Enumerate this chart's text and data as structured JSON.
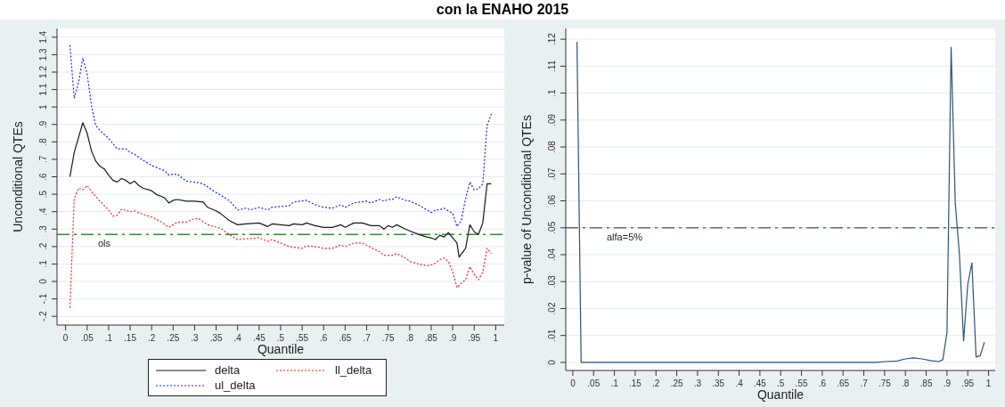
{
  "chart_data": [
    {
      "type": "line",
      "title": "con la ENAHO 2015",
      "xlabel": "Quantile",
      "ylabel": "Unconditional QTEs",
      "xlim": [
        -0.02,
        1.02
      ],
      "ylim": [
        -0.25,
        1.45
      ],
      "xticks": [
        {
          "value": 0,
          "label": "0"
        },
        {
          "value": 0.05,
          "label": ".05"
        },
        {
          "value": 0.1,
          "label": ".1"
        },
        {
          "value": 0.15,
          "label": ".15"
        },
        {
          "value": 0.2,
          "label": ".2"
        },
        {
          "value": 0.25,
          "label": ".25"
        },
        {
          "value": 0.3,
          "label": ".3"
        },
        {
          "value": 0.35,
          "label": ".35"
        },
        {
          "value": 0.4,
          "label": ".4"
        },
        {
          "value": 0.45,
          "label": ".45"
        },
        {
          "value": 0.5,
          "label": ".5"
        },
        {
          "value": 0.55,
          "label": ".55"
        },
        {
          "value": 0.6,
          "label": ".6"
        },
        {
          "value": 0.65,
          "label": ".65"
        },
        {
          "value": 0.7,
          "label": ".7"
        },
        {
          "value": 0.75,
          "label": ".75"
        },
        {
          "value": 0.8,
          "label": ".8"
        },
        {
          "value": 0.85,
          "label": ".85"
        },
        {
          "value": 0.9,
          "label": ".9"
        },
        {
          "value": 0.95,
          "label": ".95"
        },
        {
          "value": 1,
          "label": "1"
        }
      ],
      "yticks": [
        {
          "value": -0.2,
          "label": "-.2"
        },
        {
          "value": -0.1,
          "label": "-.1"
        },
        {
          "value": 0,
          "label": "0"
        },
        {
          "value": 0.1,
          "label": ".1"
        },
        {
          "value": 0.2,
          "label": ".2"
        },
        {
          "value": 0.3,
          "label": ".3"
        },
        {
          "value": 0.4,
          "label": ".4"
        },
        {
          "value": 0.5,
          "label": ".5"
        },
        {
          "value": 0.6,
          "label": ".6"
        },
        {
          "value": 0.7,
          "label": ".7"
        },
        {
          "value": 0.8,
          "label": ".8"
        },
        {
          "value": 0.9,
          "label": ".9"
        },
        {
          "value": 1,
          "label": "1"
        },
        {
          "value": 1.1,
          "label": "1.1"
        },
        {
          "value": 1.2,
          "label": "1.2"
        },
        {
          "value": 1.3,
          "label": "1.3"
        },
        {
          "value": 1.4,
          "label": "1.4"
        }
      ],
      "grid": "y",
      "legend": "bottom",
      "marker": "none",
      "ref_lines": [
        {
          "axis": "y",
          "value": 0.27,
          "label": "ols",
          "color": "#3a8a3a",
          "line_style": "dashed"
        }
      ],
      "series": [
        {
          "name": "delta",
          "color": "#1a1a1a",
          "line_style": "solid",
          "x": [
            0.01,
            0.02,
            0.04,
            0.05,
            0.06,
            0.07,
            0.08,
            0.09,
            0.1,
            0.11,
            0.12,
            0.13,
            0.14,
            0.15,
            0.16,
            0.17,
            0.18,
            0.2,
            0.21,
            0.23,
            0.24,
            0.25,
            0.26,
            0.28,
            0.3,
            0.32,
            0.33,
            0.35,
            0.36,
            0.38,
            0.4,
            0.42,
            0.45,
            0.47,
            0.48,
            0.5,
            0.52,
            0.53,
            0.55,
            0.56,
            0.58,
            0.6,
            0.62,
            0.64,
            0.65,
            0.67,
            0.69,
            0.71,
            0.73,
            0.74,
            0.75,
            0.76,
            0.77,
            0.79,
            0.8,
            0.82,
            0.84,
            0.85,
            0.86,
            0.87,
            0.88,
            0.89,
            0.9,
            0.91,
            0.915,
            0.93,
            0.94,
            0.95,
            0.96,
            0.97,
            0.98,
            0.99
          ],
          "values": [
            0.6,
            0.74,
            0.91,
            0.85,
            0.75,
            0.69,
            0.66,
            0.645,
            0.61,
            0.58,
            0.57,
            0.59,
            0.58,
            0.56,
            0.575,
            0.55,
            0.535,
            0.52,
            0.5,
            0.48,
            0.45,
            0.465,
            0.47,
            0.46,
            0.46,
            0.455,
            0.425,
            0.405,
            0.39,
            0.35,
            0.325,
            0.33,
            0.335,
            0.315,
            0.33,
            0.325,
            0.32,
            0.33,
            0.325,
            0.335,
            0.32,
            0.31,
            0.31,
            0.325,
            0.31,
            0.335,
            0.335,
            0.32,
            0.32,
            0.3,
            0.32,
            0.31,
            0.325,
            0.3,
            0.29,
            0.27,
            0.255,
            0.25,
            0.24,
            0.265,
            0.255,
            0.28,
            0.25,
            0.22,
            0.14,
            0.19,
            0.325,
            0.285,
            0.27,
            0.335,
            0.56,
            0.56
          ]
        },
        {
          "name": "ll_delta",
          "color": "#ff2020",
          "line_style": "dotted",
          "x": [
            0.01,
            0.02,
            0.03,
            0.04,
            0.05,
            0.06,
            0.08,
            0.1,
            0.11,
            0.12,
            0.13,
            0.15,
            0.16,
            0.18,
            0.2,
            0.22,
            0.24,
            0.25,
            0.26,
            0.28,
            0.3,
            0.31,
            0.33,
            0.36,
            0.38,
            0.4,
            0.42,
            0.45,
            0.47,
            0.48,
            0.5,
            0.52,
            0.55,
            0.56,
            0.58,
            0.6,
            0.62,
            0.64,
            0.65,
            0.67,
            0.69,
            0.71,
            0.73,
            0.74,
            0.76,
            0.77,
            0.79,
            0.8,
            0.82,
            0.84,
            0.85,
            0.86,
            0.87,
            0.88,
            0.89,
            0.9,
            0.91,
            0.92,
            0.93,
            0.94,
            0.95,
            0.96,
            0.97,
            0.98,
            0.99
          ],
          "values": [
            -0.15,
            0.475,
            0.535,
            0.525,
            0.55,
            0.515,
            0.46,
            0.41,
            0.375,
            0.38,
            0.415,
            0.4,
            0.405,
            0.385,
            0.37,
            0.345,
            0.31,
            0.325,
            0.34,
            0.34,
            0.36,
            0.36,
            0.325,
            0.305,
            0.27,
            0.24,
            0.245,
            0.25,
            0.23,
            0.24,
            0.22,
            0.2,
            0.19,
            0.205,
            0.2,
            0.19,
            0.19,
            0.21,
            0.2,
            0.22,
            0.22,
            0.195,
            0.17,
            0.15,
            0.15,
            0.16,
            0.135,
            0.115,
            0.1,
            0.09,
            0.095,
            0.105,
            0.125,
            0.135,
            0.115,
            0.055,
            -0.035,
            -0.01,
            0.01,
            0.085,
            0.04,
            0.01,
            0.055,
            0.19,
            0.16
          ]
        },
        {
          "name": "ul_delta",
          "color": "#2020ff",
          "line_style": "dotted",
          "x": [
            0.01,
            0.02,
            0.03,
            0.04,
            0.05,
            0.06,
            0.07,
            0.08,
            0.1,
            0.12,
            0.14,
            0.15,
            0.16,
            0.18,
            0.2,
            0.22,
            0.23,
            0.24,
            0.25,
            0.26,
            0.28,
            0.3,
            0.32,
            0.34,
            0.36,
            0.38,
            0.4,
            0.42,
            0.43,
            0.45,
            0.47,
            0.48,
            0.5,
            0.52,
            0.53,
            0.56,
            0.58,
            0.6,
            0.62,
            0.64,
            0.65,
            0.67,
            0.7,
            0.71,
            0.73,
            0.74,
            0.75,
            0.76,
            0.77,
            0.79,
            0.8,
            0.82,
            0.84,
            0.85,
            0.86,
            0.87,
            0.88,
            0.9,
            0.91,
            0.92,
            0.93,
            0.94,
            0.95,
            0.96,
            0.97,
            0.98,
            0.99
          ],
          "values": [
            1.355,
            1.05,
            1.14,
            1.28,
            1.19,
            1.01,
            0.895,
            0.865,
            0.82,
            0.76,
            0.76,
            0.74,
            0.73,
            0.695,
            0.665,
            0.645,
            0.635,
            0.61,
            0.615,
            0.615,
            0.575,
            0.57,
            0.56,
            0.525,
            0.495,
            0.465,
            0.41,
            0.42,
            0.41,
            0.425,
            0.41,
            0.425,
            0.43,
            0.435,
            0.455,
            0.465,
            0.44,
            0.425,
            0.42,
            0.44,
            0.425,
            0.45,
            0.46,
            0.45,
            0.47,
            0.46,
            0.47,
            0.47,
            0.485,
            0.465,
            0.46,
            0.44,
            0.41,
            0.395,
            0.41,
            0.41,
            0.42,
            0.39,
            0.315,
            0.35,
            0.475,
            0.57,
            0.525,
            0.53,
            0.56,
            0.895,
            0.96
          ]
        }
      ]
    },
    {
      "type": "line",
      "xlabel": "Quantile",
      "ylabel": "p-value of Unconditional QTEs",
      "xlim": [
        -0.017,
        1.016
      ],
      "ylim": [
        -0.003,
        0.124
      ],
      "xticks": [
        {
          "value": 0,
          "label": "0"
        },
        {
          "value": 0.05,
          "label": ".05"
        },
        {
          "value": 0.1,
          "label": ".1"
        },
        {
          "value": 0.15,
          "label": ".15"
        },
        {
          "value": 0.2,
          "label": ".2"
        },
        {
          "value": 0.25,
          "label": ".25"
        },
        {
          "value": 0.3,
          "label": ".3"
        },
        {
          "value": 0.35,
          "label": ".35"
        },
        {
          "value": 0.4,
          "label": ".4"
        },
        {
          "value": 0.45,
          "label": ".45"
        },
        {
          "value": 0.5,
          "label": ".5"
        },
        {
          "value": 0.55,
          "label": ".55"
        },
        {
          "value": 0.6,
          "label": ".6"
        },
        {
          "value": 0.65,
          "label": ".65"
        },
        {
          "value": 0.7,
          "label": ".7"
        },
        {
          "value": 0.75,
          "label": ".75"
        },
        {
          "value": 0.8,
          "label": ".8"
        },
        {
          "value": 0.85,
          "label": ".85"
        },
        {
          "value": 0.9,
          "label": ".9"
        },
        {
          "value": 0.95,
          "label": ".95"
        },
        {
          "value": 1,
          "label": "1"
        }
      ],
      "yticks": [
        {
          "value": 0,
          "label": "0"
        },
        {
          "value": 0.01,
          "label": ".01"
        },
        {
          "value": 0.02,
          "label": ".02"
        },
        {
          "value": 0.03,
          "label": ".03"
        },
        {
          "value": 0.04,
          "label": ".04"
        },
        {
          "value": 0.05,
          "label": ".05"
        },
        {
          "value": 0.06,
          "label": ".06"
        },
        {
          "value": 0.07,
          "label": ".07"
        },
        {
          "value": 0.08,
          "label": ".08"
        },
        {
          "value": 0.09,
          "label": ".09"
        },
        {
          "value": 0.1,
          "label": ".1"
        },
        {
          "value": 0.11,
          "label": ".11"
        },
        {
          "value": 0.12,
          "label": ".12"
        }
      ],
      "grid": "y",
      "marker": "none",
      "ref_lines": [
        {
          "axis": "y",
          "value": 0.05,
          "label": "alfa=5%",
          "color": "#3a8a3a",
          "line_style": "dashed"
        }
      ],
      "series": [
        {
          "color": "#2f5475",
          "line_style": "solid",
          "x": [
            0.01,
            0.02,
            0.1,
            0.2,
            0.3,
            0.4,
            0.5,
            0.6,
            0.7,
            0.73,
            0.75,
            0.78,
            0.8,
            0.82,
            0.84,
            0.86,
            0.88,
            0.89,
            0.9,
            0.91,
            0.92,
            0.93,
            0.94,
            0.95,
            0.96,
            0.97,
            0.98,
            0.99
          ],
          "values": [
            0.119,
            0,
            0,
            0,
            0,
            0,
            0,
            0,
            0,
            0,
            0.0003,
            0.0005,
            0.0013,
            0.0017,
            0.0013,
            0.0007,
            0.0003,
            0.001,
            0.011,
            0.117,
            0.059,
            0.04,
            0.008,
            0.029,
            0.037,
            0.002,
            0.0025,
            0.0075
          ]
        }
      ]
    }
  ]
}
